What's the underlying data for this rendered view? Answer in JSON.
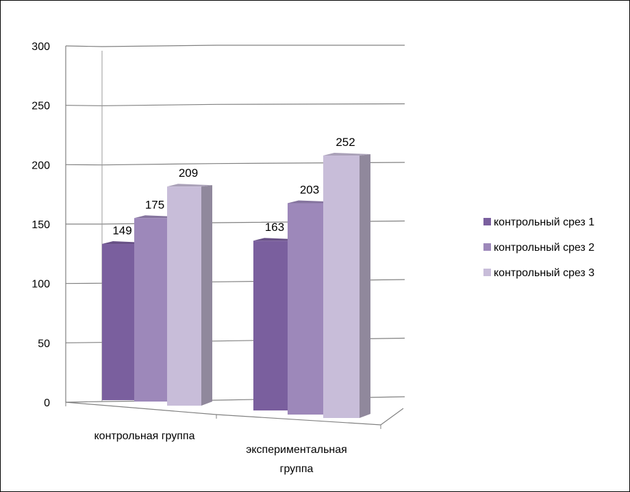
{
  "chart_data": {
    "type": "bar",
    "categories": [
      [
        "контрольная группа"
      ],
      [
        "экспериментальная",
        "группа"
      ]
    ],
    "series": [
      {
        "name": "контрольный срез 1",
        "values": [
          149,
          163
        ],
        "color": "#7a5f9e"
      },
      {
        "name": "контрольный срез 2",
        "values": [
          175,
          203
        ],
        "color": "#9d88ba"
      },
      {
        "name": "контрольный срез 3",
        "values": [
          209,
          252
        ],
        "color": "#c8bdd9"
      }
    ],
    "ylim": [
      0,
      300
    ],
    "yticks": [
      "0",
      "50",
      "100",
      "150",
      "200",
      "250",
      "300"
    ],
    "data_labels": [
      [
        "149",
        "163"
      ],
      [
        "175",
        "203"
      ],
      [
        "209",
        "252"
      ]
    ],
    "legend_position": "right",
    "grid": true,
    "style": "3d-column"
  }
}
